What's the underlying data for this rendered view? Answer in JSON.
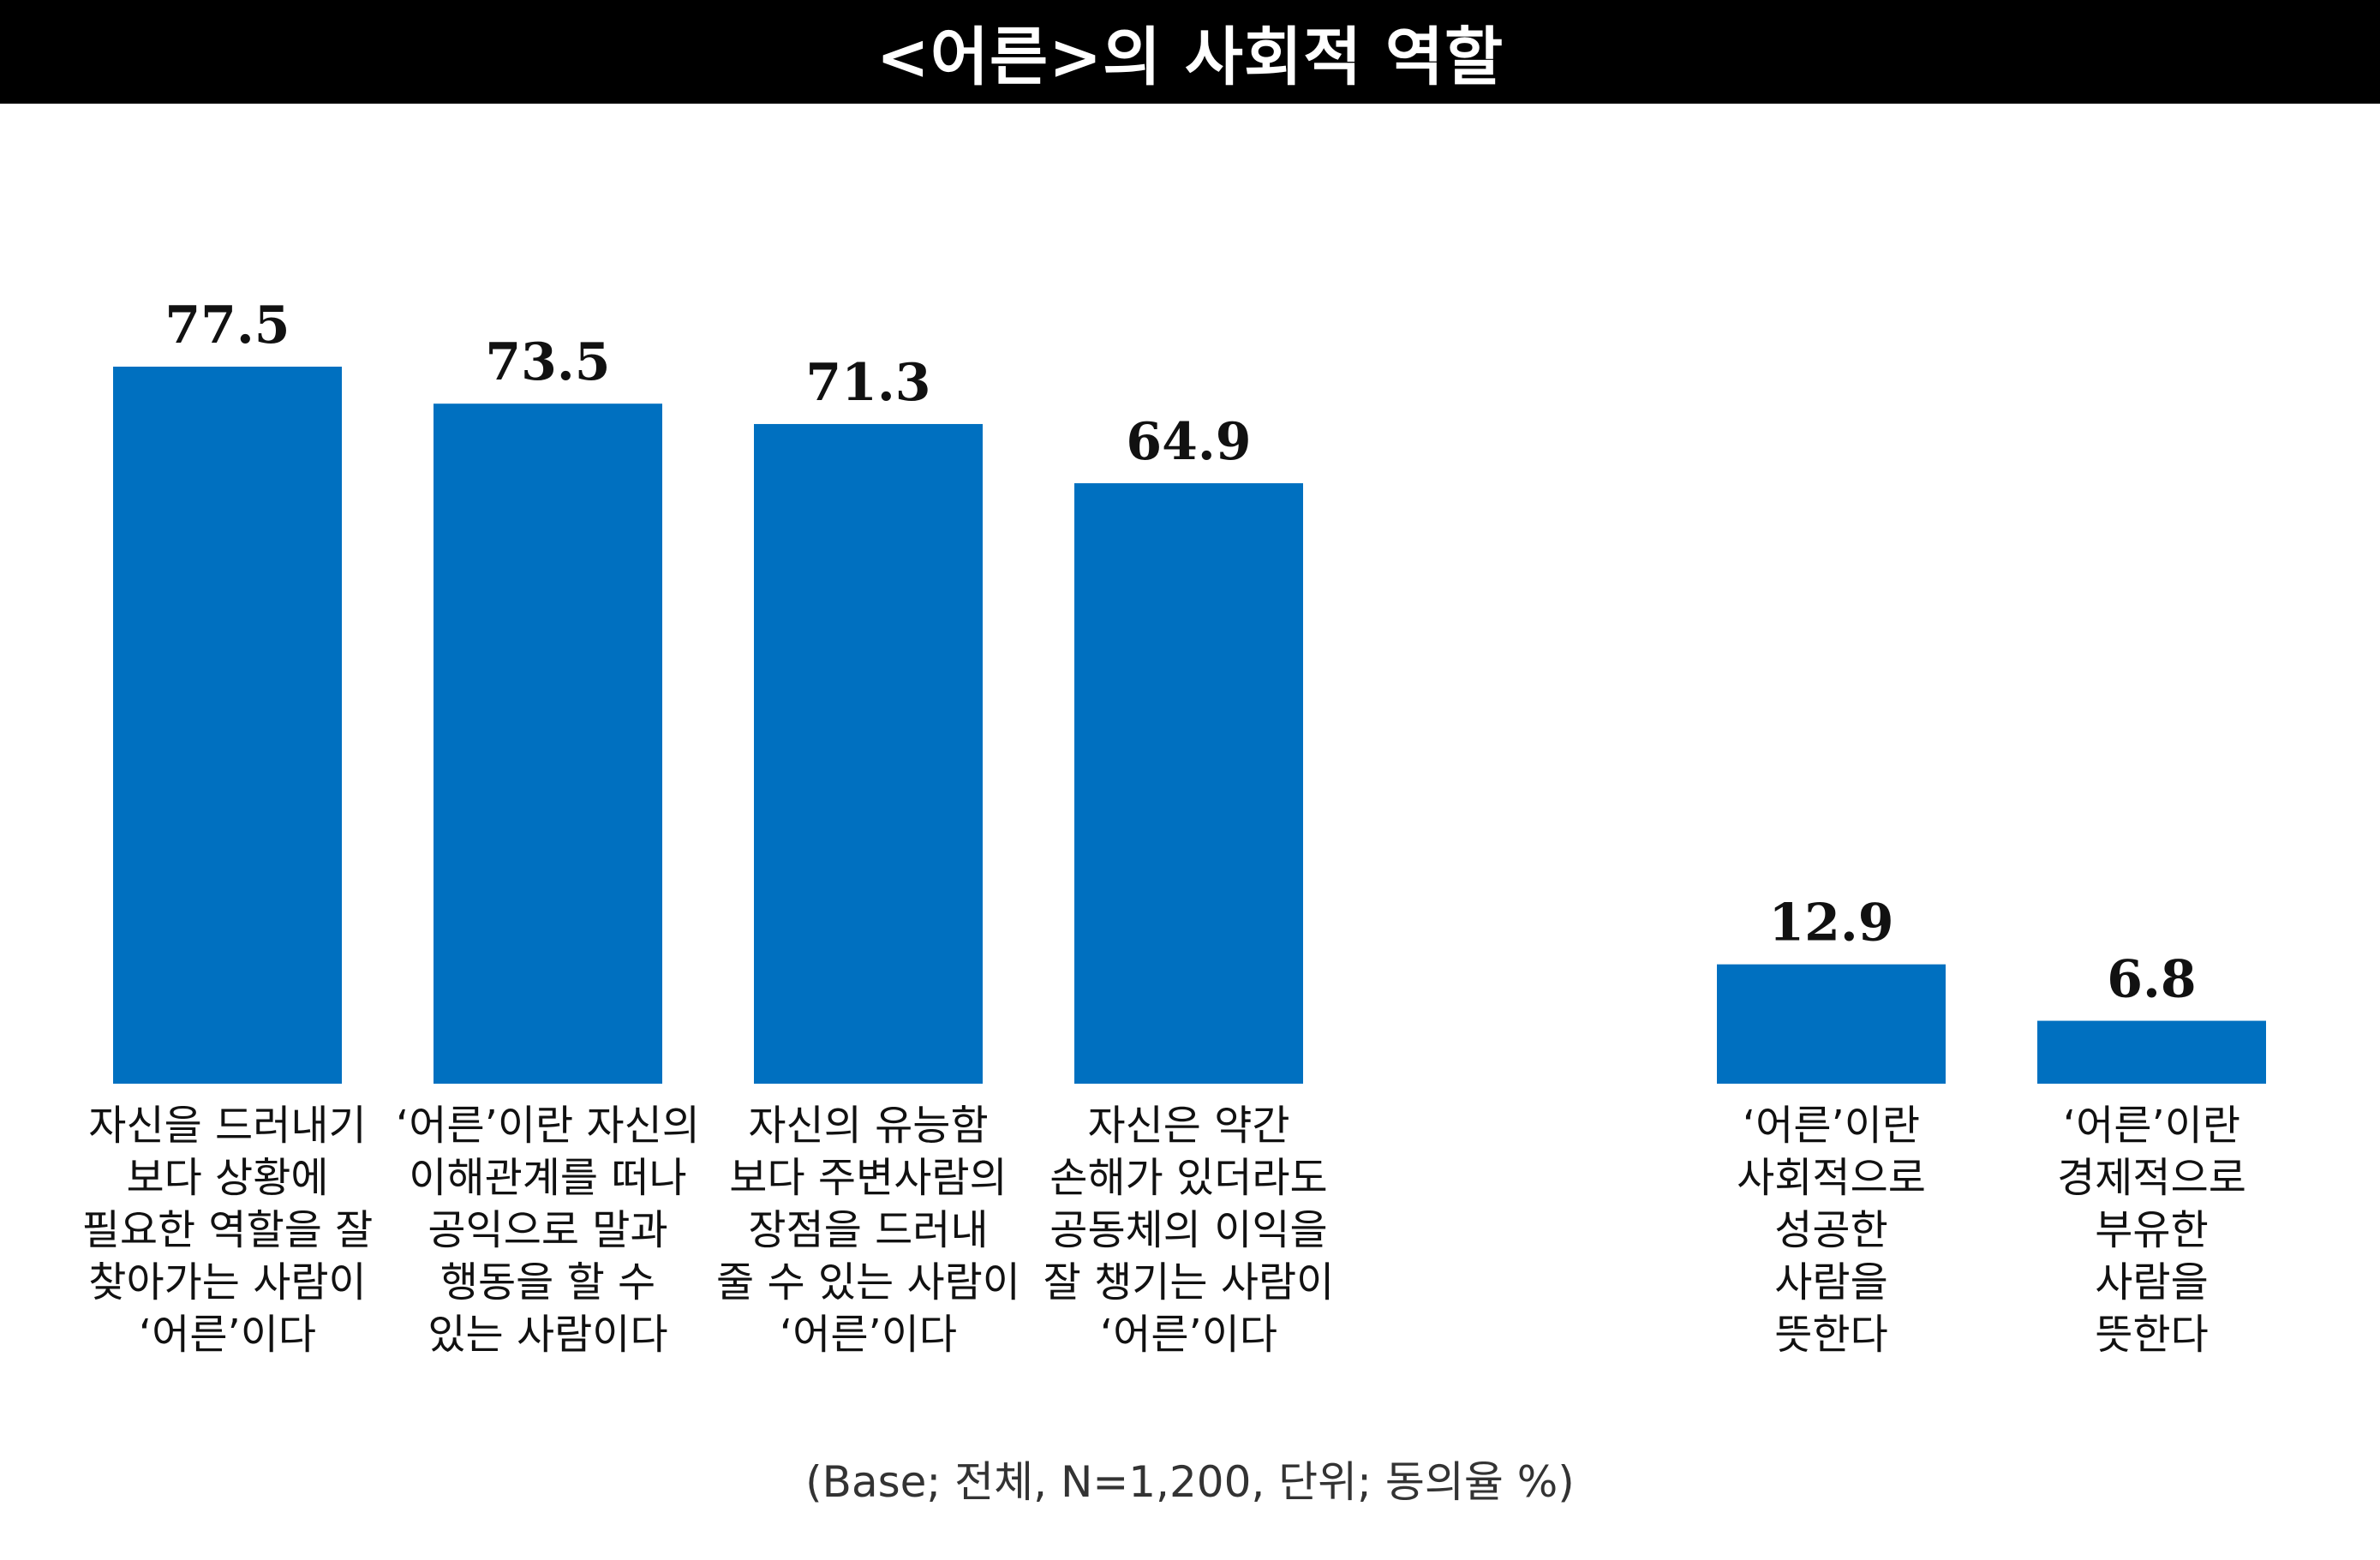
{
  "title": "<어른>의 사회적 역할",
  "footnote": "(Base; 전체, N=1,200, 단위; 동의율 %)",
  "colors": {
    "bar": "#0070C0",
    "title_bg": "#000000",
    "title_text": "#FFFFFF"
  },
  "chart_data": {
    "type": "bar",
    "title": "<어른>의 사회적 역할",
    "xlabel": "",
    "ylabel": "",
    "unit": "%",
    "grid": false,
    "legend": "none",
    "ylim": [
      0,
      85
    ],
    "categories": [
      [
        "자신을 드러내기",
        "보다 상황에",
        "필요한 역할을 잘",
        "찾아가는 사람이",
        "‘어른’이다"
      ],
      [
        "‘어른’이란 자신의",
        "이해관계를 떠나",
        "공익으로 말과",
        "행동을 할 수",
        "있는 사람이다"
      ],
      [
        "자신의 유능함",
        "보다 주변사람의",
        "장점을 드러내",
        "줄 수 있는 사람이",
        "‘어른’이다"
      ],
      [
        "자신은 약간",
        "손해가 있더라도",
        "공동체의 이익을",
        "잘 챙기는 사람이",
        "‘어른’이다"
      ],
      [
        "‘어른’이란",
        "사회적으로",
        "성공한",
        "사람을",
        "뜻한다"
      ],
      [
        "‘어른’이란",
        "경제적으로",
        "부유한",
        "사람을",
        "뜻한다"
      ]
    ],
    "values": [
      77.5,
      73.5,
      71.3,
      64.9,
      12.9,
      6.8
    ],
    "value_labels": [
      "77.5",
      "73.5",
      "71.3",
      "64.9",
      "12.9",
      "6.8"
    ]
  }
}
